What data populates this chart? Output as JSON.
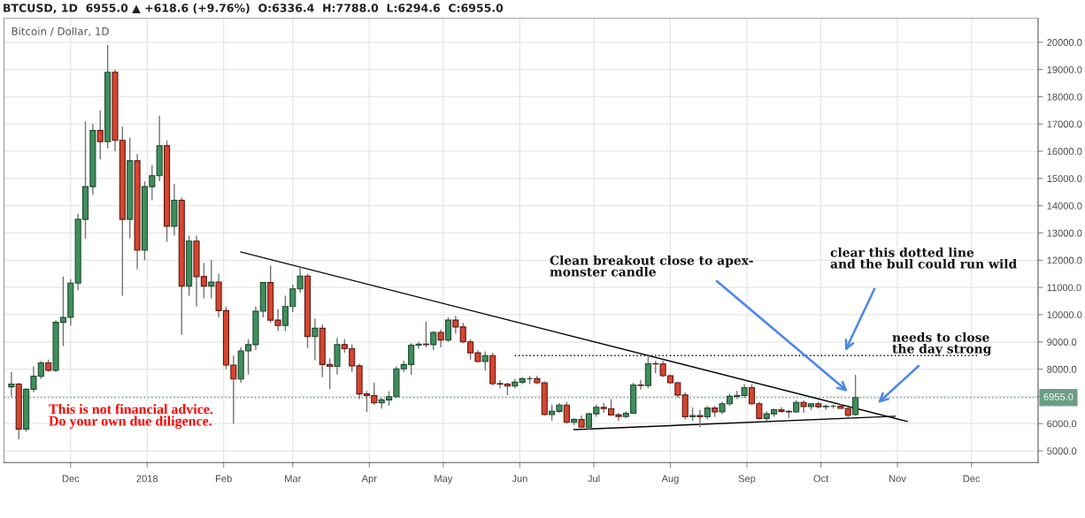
{
  "chart_data": {
    "type": "candlestick",
    "title": "BTCUSD, 1D  6955.0 ▲ +618.6 (+9.76%)  O:6336.4  H:7788.0  L:6294.6  C:6955.0",
    "subtitle": "Bitcoin / Dollar, 1D",
    "x": [
      "2017-11-07",
      "2017-11-10",
      "2017-11-13",
      "2017-11-16",
      "2017-11-19",
      "2017-11-22",
      "2017-11-25",
      "2017-11-28",
      "2017-12-01",
      "2017-12-04",
      "2017-12-07",
      "2017-12-10",
      "2017-12-13",
      "2017-12-16",
      "2017-12-19",
      "2017-12-22",
      "2017-12-25",
      "2017-12-28",
      "2017-12-31",
      "2018-01-03",
      "2018-01-06",
      "2018-01-09",
      "2018-01-12",
      "2018-01-15",
      "2018-01-18",
      "2018-01-21",
      "2018-01-24",
      "2018-01-27",
      "2018-01-30",
      "2018-02-02",
      "2018-02-05",
      "2018-02-08",
      "2018-02-11",
      "2018-02-14",
      "2018-02-17",
      "2018-02-20",
      "2018-02-23",
      "2018-02-26",
      "2018-03-01",
      "2018-03-04",
      "2018-03-07",
      "2018-03-10",
      "2018-03-13",
      "2018-03-16",
      "2018-03-19",
      "2018-03-22",
      "2018-03-25",
      "2018-03-28",
      "2018-03-31",
      "2018-04-03",
      "2018-04-06",
      "2018-04-09",
      "2018-04-12",
      "2018-04-15",
      "2018-04-18",
      "2018-04-21",
      "2018-04-24",
      "2018-04-27",
      "2018-04-30",
      "2018-05-03",
      "2018-05-06",
      "2018-05-09",
      "2018-05-12",
      "2018-05-15",
      "2018-05-18",
      "2018-05-21",
      "2018-05-24",
      "2018-05-27",
      "2018-05-30",
      "2018-06-02",
      "2018-06-05",
      "2018-06-08",
      "2018-06-11",
      "2018-06-14",
      "2018-06-17",
      "2018-06-20",
      "2018-06-23",
      "2018-06-26",
      "2018-06-29",
      "2018-07-02",
      "2018-07-05",
      "2018-07-08",
      "2018-07-11",
      "2018-07-14",
      "2018-07-17",
      "2018-07-20",
      "2018-07-23",
      "2018-07-26",
      "2018-07-29",
      "2018-08-01",
      "2018-08-04",
      "2018-08-07",
      "2018-08-10",
      "2018-08-13",
      "2018-08-16",
      "2018-08-19",
      "2018-08-22",
      "2018-08-25",
      "2018-08-28",
      "2018-08-31",
      "2018-09-03",
      "2018-09-06",
      "2018-09-09",
      "2018-09-12",
      "2018-09-15",
      "2018-09-18",
      "2018-09-21",
      "2018-09-24",
      "2018-09-27",
      "2018-09-30",
      "2018-10-03",
      "2018-10-06",
      "2018-10-09",
      "2018-10-12",
      "2018-10-15"
    ],
    "ohlc": [
      [
        7350,
        7900,
        7000,
        7450
      ],
      [
        7450,
        7500,
        5420,
        5800
      ],
      [
        5800,
        7300,
        5700,
        7260
      ],
      [
        7260,
        8100,
        7150,
        7740
      ],
      [
        7740,
        8300,
        7650,
        8230
      ],
      [
        8230,
        8350,
        7900,
        7960
      ],
      [
        7960,
        9800,
        7900,
        9720
      ],
      [
        9720,
        11400,
        8850,
        9900
      ],
      [
        9900,
        11300,
        9600,
        11160
      ],
      [
        11160,
        13700,
        10900,
        13500
      ],
      [
        13500,
        17100,
        12780,
        14700
      ],
      [
        14700,
        17000,
        14400,
        16760
      ],
      [
        16760,
        17500,
        15700,
        16350
      ],
      [
        16350,
        19900,
        16100,
        18900
      ],
      [
        18900,
        19000,
        16000,
        16400
      ],
      [
        16400,
        16900,
        10700,
        13500
      ],
      [
        13500,
        16500,
        12800,
        15650
      ],
      [
        15650,
        15900,
        11670,
        12370
      ],
      [
        12370,
        14900,
        12000,
        14700
      ],
      [
        14700,
        15500,
        14200,
        15100
      ],
      [
        15100,
        17300,
        14900,
        16200
      ],
      [
        16200,
        16400,
        12670,
        13250
      ],
      [
        13250,
        14800,
        12900,
        14200
      ],
      [
        14200,
        14300,
        9260,
        11050
      ],
      [
        11050,
        12900,
        10700,
        12700
      ],
      [
        12700,
        12900,
        10300,
        11400
      ],
      [
        11400,
        11900,
        10600,
        11050
      ],
      [
        11050,
        12000,
        10600,
        11200
      ],
      [
        11200,
        11500,
        9900,
        10150
      ],
      [
        10150,
        10300,
        8000,
        8150
      ],
      [
        8150,
        8500,
        6000,
        7640
      ],
      [
        7640,
        8800,
        7500,
        8670
      ],
      [
        8670,
        9100,
        7800,
        8900
      ],
      [
        8900,
        10300,
        8700,
        10130
      ],
      [
        10130,
        11200,
        9900,
        11180
      ],
      [
        11180,
        11800,
        9700,
        9800
      ],
      [
        9800,
        10200,
        9400,
        9600
      ],
      [
        9600,
        10700,
        9400,
        10300
      ],
      [
        10300,
        11100,
        10100,
        10950
      ],
      [
        10950,
        11750,
        10800,
        11420
      ],
      [
        11420,
        11500,
        8770,
        9200
      ],
      [
        9200,
        9850,
        8330,
        9500
      ],
      [
        9500,
        9650,
        7700,
        8170
      ],
      [
        8170,
        8400,
        7270,
        8100
      ],
      [
        8100,
        9150,
        7800,
        8900
      ],
      [
        8900,
        9100,
        8600,
        8750
      ],
      [
        8750,
        8900,
        7900,
        8120
      ],
      [
        8120,
        8200,
        6900,
        7090
      ],
      [
        7090,
        7200,
        6430,
        7030
      ],
      [
        7030,
        7500,
        6700,
        6760
      ],
      [
        6760,
        6950,
        6550,
        6870
      ],
      [
        6870,
        7190,
        6650,
        6990
      ],
      [
        6990,
        8100,
        6950,
        8010
      ],
      [
        8010,
        8300,
        7900,
        8170
      ],
      [
        8170,
        8950,
        7800,
        8880
      ],
      [
        8880,
        9000,
        8750,
        8920
      ],
      [
        8920,
        9750,
        8800,
        8900
      ],
      [
        8900,
        9400,
        8700,
        9350
      ],
      [
        9350,
        9450,
        8800,
        9070
      ],
      [
        9070,
        9900,
        9000,
        9800
      ],
      [
        9800,
        9960,
        9300,
        9550
      ],
      [
        9550,
        9700,
        8950,
        9000
      ],
      [
        9000,
        9100,
        8350,
        8600
      ],
      [
        8600,
        8700,
        8250,
        8280
      ],
      [
        8280,
        8650,
        7950,
        8500
      ],
      [
        8500,
        8600,
        7400,
        7470
      ],
      [
        7470,
        7600,
        7300,
        7450
      ],
      [
        7450,
        7500,
        7050,
        7380
      ],
      [
        7380,
        7650,
        7300,
        7520
      ],
      [
        7520,
        7700,
        7450,
        7650
      ],
      [
        7650,
        7750,
        7450,
        7650
      ],
      [
        7650,
        7750,
        7450,
        7500
      ],
      [
        7500,
        7550,
        6300,
        6330
      ],
      [
        6330,
        6700,
        6110,
        6450
      ],
      [
        6450,
        6750,
        6400,
        6680
      ],
      [
        6680,
        6800,
        6000,
        6050
      ],
      [
        6050,
        6200,
        5950,
        6150
      ],
      [
        6150,
        6300,
        5850,
        5870
      ],
      [
        5870,
        6400,
        5780,
        6360
      ],
      [
        6360,
        6700,
        6250,
        6600
      ],
      [
        6600,
        6750,
        6400,
        6550
      ],
      [
        6550,
        6900,
        6300,
        6320
      ],
      [
        6320,
        6400,
        6100,
        6260
      ],
      [
        6260,
        6450,
        6200,
        6380
      ],
      [
        6380,
        7500,
        6350,
        7420
      ],
      [
        7420,
        7600,
        7250,
        7400
      ],
      [
        7400,
        8500,
        7300,
        8200
      ],
      [
        8200,
        8300,
        7850,
        8190
      ],
      [
        8190,
        8300,
        7700,
        7760
      ],
      [
        7760,
        7800,
        7450,
        7500
      ],
      [
        7500,
        7550,
        6950,
        7050
      ],
      [
        7050,
        7150,
        6150,
        6250
      ],
      [
        6250,
        6600,
        6100,
        6300
      ],
      [
        6300,
        6500,
        5870,
        6250
      ],
      [
        6250,
        6650,
        6150,
        6570
      ],
      [
        6570,
        6650,
        6250,
        6430
      ],
      [
        6430,
        6800,
        6350,
        6730
      ],
      [
        6730,
        7100,
        6650,
        7000
      ],
      [
        7000,
        7200,
        6900,
        7030
      ],
      [
        7030,
        7450,
        6950,
        7320
      ],
      [
        7320,
        7450,
        6700,
        6730
      ],
      [
        6730,
        6800,
        6150,
        6190
      ],
      [
        6190,
        6450,
        6100,
        6360
      ],
      [
        6360,
        6550,
        6250,
        6510
      ],
      [
        6510,
        6600,
        6400,
        6450
      ],
      [
        6450,
        6500,
        6200,
        6430
      ],
      [
        6430,
        6850,
        6400,
        6780
      ],
      [
        6780,
        6850,
        6400,
        6630
      ],
      [
        6630,
        6750,
        6500,
        6730
      ],
      [
        6730,
        6800,
        6550,
        6620
      ],
      [
        6620,
        6700,
        6500,
        6640
      ],
      [
        6640,
        6700,
        6550,
        6640
      ],
      [
        6640,
        6720,
        6550,
        6560
      ],
      [
        6560,
        6600,
        6200,
        6310
      ],
      [
        6336.4,
        7788.0,
        6294.6,
        6955.0
      ]
    ],
    "series": [
      {
        "type": "line",
        "x": [
          "2018-02-08",
          "2018-11-05"
        ],
        "values": [
          12300,
          6080
        ],
        "color": "#000000",
        "line_style": "solid"
      },
      {
        "type": "line",
        "x": [
          "2018-06-23",
          "2018-10-31"
        ],
        "values": [
          5780,
          6270
        ],
        "color": "#000000",
        "line_style": "solid"
      },
      {
        "type": "line",
        "x": [
          "2018-05-30",
          "2018-12-04"
        ],
        "values": [
          8500,
          8500
        ],
        "color": "#000000",
        "line_style": "dotted"
      }
    ],
    "ref_lines": [
      {
        "axis": "y",
        "value": 6955,
        "label": "6955.0",
        "color": "#6a9f82",
        "line_style": "dotted"
      }
    ],
    "annotations": [
      "Clean breakout close to apex-\nmonster candle",
      "clear this dotted line\nand the bull could run wild",
      "needs to close\nthe day strong",
      "This is not financial advice.\nDo your own due diligence."
    ],
    "xlim": [
      "2017-11-04",
      "2018-12-28"
    ],
    "xticks": [
      {
        "value": "2017-12-01",
        "label": "Dec"
      },
      {
        "value": "2018-01-01",
        "label": "2018"
      },
      {
        "value": "2018-02-01",
        "label": "Feb"
      },
      {
        "value": "2018-03-01",
        "label": "Mar"
      },
      {
        "value": "2018-04-01",
        "label": "Apr"
      },
      {
        "value": "2018-05-01",
        "label": "May"
      },
      {
        "value": "2018-06-01",
        "label": "Jun"
      },
      {
        "value": "2018-07-01",
        "label": "Jul"
      },
      {
        "value": "2018-08-01",
        "label": "Aug"
      },
      {
        "value": "2018-09-01",
        "label": "Sep"
      },
      {
        "value": "2018-10-01",
        "label": "Oct"
      },
      {
        "value": "2018-11-01",
        "label": "Nov"
      },
      {
        "value": "2018-12-01",
        "label": "Dec"
      }
    ],
    "ylim": [
      4570,
      20880
    ],
    "yticks": [
      {
        "value": 5000,
        "label": "5000.0"
      },
      {
        "value": 6000,
        "label": "6000.0"
      },
      {
        "value": 7000,
        "label": null
      },
      {
        "value": 8000,
        "label": "8000.0"
      },
      {
        "value": 9000,
        "label": "9000.0"
      },
      {
        "value": 10000,
        "label": "10000.0"
      },
      {
        "value": 11000,
        "label": "11000.0"
      },
      {
        "value": 12000,
        "label": "12000.0"
      },
      {
        "value": 13000,
        "label": "13000.0"
      },
      {
        "value": 14000,
        "label": "14000.0"
      },
      {
        "value": 15000,
        "label": "15000.0"
      },
      {
        "value": 16000,
        "label": "16000.0"
      },
      {
        "value": 17000,
        "label": "17000.0"
      },
      {
        "value": 18000,
        "label": "18000.0"
      },
      {
        "value": 19000,
        "label": "19000.0"
      },
      {
        "value": 20000,
        "label": "20000.0"
      }
    ],
    "grid": true
  }
}
